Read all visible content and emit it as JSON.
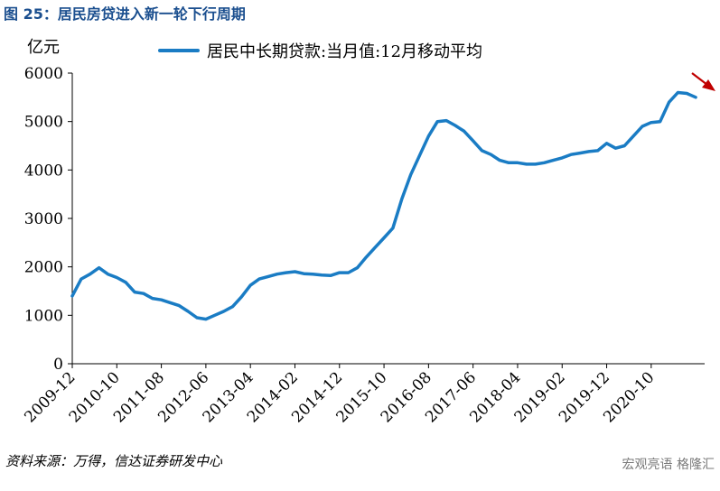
{
  "figure": {
    "title": "图 25：居民房贷进入新一轮下行周期",
    "source": "资料来源：万得，信达证券研发中心",
    "watermark": "宏观亮语 格隆汇"
  },
  "colors": {
    "title": "#1b4f8f",
    "series": "#1a7cc4",
    "arrow": "#c00000",
    "axis": "#000000"
  },
  "chart_data": {
    "type": "line",
    "title": "",
    "unit_label": "亿元",
    "xlabel": "",
    "ylabel": "亿元",
    "ylim": [
      0,
      6000
    ],
    "yticks": [
      0,
      1000,
      2000,
      3000,
      4000,
      5000,
      6000
    ],
    "xlim": [
      "2009-12",
      "2021-10"
    ],
    "xticks": [
      "2009-12",
      "2010-10",
      "2011-08",
      "2012-06",
      "2013-04",
      "2014-02",
      "2014-12",
      "2015-10",
      "2016-08",
      "2017-06",
      "2018-04",
      "2019-02",
      "2019-12",
      "2020-10"
    ],
    "grid": false,
    "legend_position": "top",
    "annotation": "red downward arrow at end of series",
    "series": [
      {
        "name": "居民中长期贷款:当月值:12月移动平均",
        "x": [
          "2009-12",
          "2010-02",
          "2010-04",
          "2010-06",
          "2010-08",
          "2010-10",
          "2010-12",
          "2011-02",
          "2011-04",
          "2011-06",
          "2011-08",
          "2011-10",
          "2011-12",
          "2012-02",
          "2012-04",
          "2012-06",
          "2012-08",
          "2012-10",
          "2012-12",
          "2013-02",
          "2013-04",
          "2013-06",
          "2013-08",
          "2013-10",
          "2013-12",
          "2014-02",
          "2014-04",
          "2014-06",
          "2014-08",
          "2014-10",
          "2014-12",
          "2015-02",
          "2015-04",
          "2015-06",
          "2015-08",
          "2015-10",
          "2015-12",
          "2016-02",
          "2016-04",
          "2016-06",
          "2016-08",
          "2016-10",
          "2016-12",
          "2017-02",
          "2017-04",
          "2017-06",
          "2017-08",
          "2017-10",
          "2017-12",
          "2018-02",
          "2018-04",
          "2018-06",
          "2018-08",
          "2018-10",
          "2018-12",
          "2019-02",
          "2019-04",
          "2019-06",
          "2019-08",
          "2019-10",
          "2019-12",
          "2020-02",
          "2020-04",
          "2020-06",
          "2020-08",
          "2020-10",
          "2020-12",
          "2021-02",
          "2021-04",
          "2021-06",
          "2021-08"
        ],
        "values": [
          1400,
          1750,
          1850,
          1980,
          1850,
          1780,
          1680,
          1480,
          1450,
          1350,
          1320,
          1260,
          1200,
          1080,
          950,
          920,
          1000,
          1080,
          1180,
          1380,
          1620,
          1750,
          1800,
          1850,
          1880,
          1900,
          1860,
          1850,
          1830,
          1820,
          1880,
          1880,
          1980,
          2200,
          2400,
          2600,
          2800,
          3400,
          3900,
          4300,
          4700,
          5000,
          5020,
          4920,
          4800,
          4600,
          4400,
          4320,
          4200,
          4150,
          4150,
          4120,
          4120,
          4150,
          4200,
          4250,
          4320,
          4350,
          4380,
          4400,
          4550,
          4450,
          4500,
          4700,
          4900,
          4980,
          5000,
          5400,
          5600,
          5580,
          5500
        ]
      }
    ]
  }
}
